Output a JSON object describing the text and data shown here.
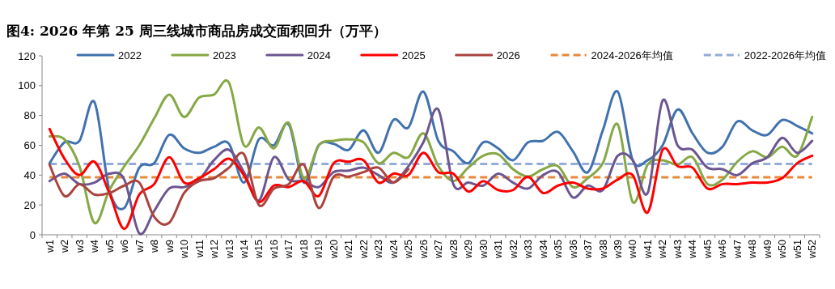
{
  "chart_data": {
    "type": "line",
    "title": "图4:  2026 年第 25 周三线城市商品房成交面积回升（万平）",
    "categories": [
      "w1",
      "w2",
      "w3",
      "w4",
      "w5",
      "w6",
      "w7",
      "w8",
      "w9",
      "w10",
      "w11",
      "w12",
      "w13",
      "w14",
      "w15",
      "w16",
      "w17",
      "w18",
      "w19",
      "w20",
      "w21",
      "w22",
      "w23",
      "w24",
      "w25",
      "w26",
      "w27",
      "w28",
      "w29",
      "w30",
      "w31",
      "w32",
      "w33",
      "w34",
      "w35",
      "w36",
      "w37",
      "w38",
      "w39",
      "w40",
      "w41",
      "w42",
      "w43",
      "w44",
      "w45",
      "w46",
      "w47",
      "w48",
      "w49",
      "w50",
      "w51",
      "w52"
    ],
    "ylim": [
      0,
      120
    ],
    "yticks": [
      0,
      20,
      40,
      60,
      80,
      100,
      120
    ],
    "legend": "top",
    "marker": "none",
    "grid": false,
    "series": [
      {
        "name": "2022",
        "color": "#4172ad",
        "values": [
          48,
          62,
          63,
          89,
          30,
          18,
          45,
          48,
          67,
          58,
          55,
          59,
          61,
          35,
          64,
          60,
          74,
          35,
          60,
          61,
          57,
          70,
          55,
          77,
          72,
          96,
          63,
          56,
          48,
          62,
          58,
          50,
          62,
          63,
          69,
          56,
          42,
          70,
          96,
          50,
          50,
          60,
          84,
          68,
          55,
          59,
          76,
          70,
          67,
          77,
          73,
          68
        ]
      },
      {
        "name": "2023",
        "color": "#86a845",
        "values": [
          66,
          64,
          46,
          8,
          30,
          46,
          60,
          78,
          94,
          79,
          92,
          94,
          102,
          60,
          72,
          58,
          75,
          38,
          60,
          63,
          64,
          62,
          48,
          55,
          52,
          68,
          46,
          36,
          45,
          53,
          54,
          44,
          39,
          44,
          46,
          32,
          38,
          48,
          74,
          22,
          47,
          50,
          47,
          52,
          34,
          37,
          49,
          56,
          52,
          59,
          53,
          79
        ]
      },
      {
        "name": "2024",
        "color": "#6c5690",
        "values": [
          36,
          41,
          34,
          35,
          41,
          37,
          1,
          16,
          31,
          32,
          37,
          50,
          57,
          42,
          23,
          52,
          37,
          36,
          32,
          42,
          43,
          45,
          40,
          35,
          46,
          62,
          84,
          34,
          35,
          33,
          41,
          35,
          31,
          40,
          42,
          25,
          33,
          30,
          53,
          50,
          28,
          90,
          60,
          57,
          45,
          44,
          40,
          48,
          52,
          65,
          55,
          63
        ]
      },
      {
        "name": "2025",
        "color": "#ff0000",
        "values": [
          71,
          51,
          40,
          49,
          28,
          4,
          27,
          34,
          52,
          35,
          38,
          44,
          51,
          40,
          22,
          33,
          32,
          36,
          26,
          48,
          49,
          50,
          35,
          41,
          40,
          55,
          42,
          41,
          29,
          36,
          30,
          30,
          39,
          28,
          33,
          35,
          31,
          31,
          37,
          40,
          15,
          57,
          46,
          45,
          31,
          34,
          34,
          35,
          35,
          38,
          48,
          53
        ]
      },
      {
        "name": "2026",
        "color": "#a9443f",
        "values": [
          47,
          26,
          34,
          27,
          28,
          33,
          35,
          12,
          8,
          28,
          36,
          38,
          45,
          54,
          20,
          31,
          34,
          47,
          18,
          39,
          39,
          42,
          45,
          35,
          44,
          null,
          null,
          null,
          null,
          null,
          null,
          null,
          null,
          null,
          null,
          null,
          null,
          null,
          null,
          null,
          null,
          null,
          null,
          null,
          null,
          null,
          null,
          null,
          null,
          null,
          null,
          null
        ]
      },
      {
        "name": "2024-2026年均值",
        "color": "#e8883a",
        "line_style": "dashed",
        "values": [
          38.5,
          38.5,
          38.5,
          38.5,
          38.5,
          38.5,
          38.5,
          38.5,
          38.5,
          38.5,
          38.5,
          38.5,
          38.5,
          38.5,
          38.5,
          38.5,
          38.5,
          38.5,
          38.5,
          38.5,
          38.5,
          38.5,
          38.5,
          38.5,
          38.5,
          38.5,
          38.5,
          38.5,
          38.5,
          38.5,
          38.5,
          38.5,
          38.5,
          38.5,
          38.5,
          38.5,
          38.5,
          38.5,
          38.5,
          38.5,
          38.5,
          38.5,
          38.5,
          38.5,
          38.5,
          38.5,
          38.5,
          38.5,
          38.5,
          38.5,
          38.5,
          38.5
        ]
      },
      {
        "name": "2022-2026年均值",
        "color": "#94acd8",
        "line_style": "dashed",
        "values": [
          47.5,
          47.5,
          47.5,
          47.5,
          47.5,
          47.5,
          47.5,
          47.5,
          47.5,
          47.5,
          47.5,
          47.5,
          47.5,
          47.5,
          47.5,
          47.5,
          47.5,
          47.5,
          47.5,
          47.5,
          47.5,
          47.5,
          47.5,
          47.5,
          47.5,
          47.5,
          47.5,
          47.5,
          47.5,
          47.5,
          47.5,
          47.5,
          47.5,
          47.5,
          47.5,
          47.5,
          47.5,
          47.5,
          47.5,
          47.5,
          47.5,
          47.5,
          47.5,
          47.5,
          47.5,
          47.5,
          47.5,
          47.5,
          47.5,
          47.5,
          47.5,
          47.5
        ]
      }
    ]
  }
}
